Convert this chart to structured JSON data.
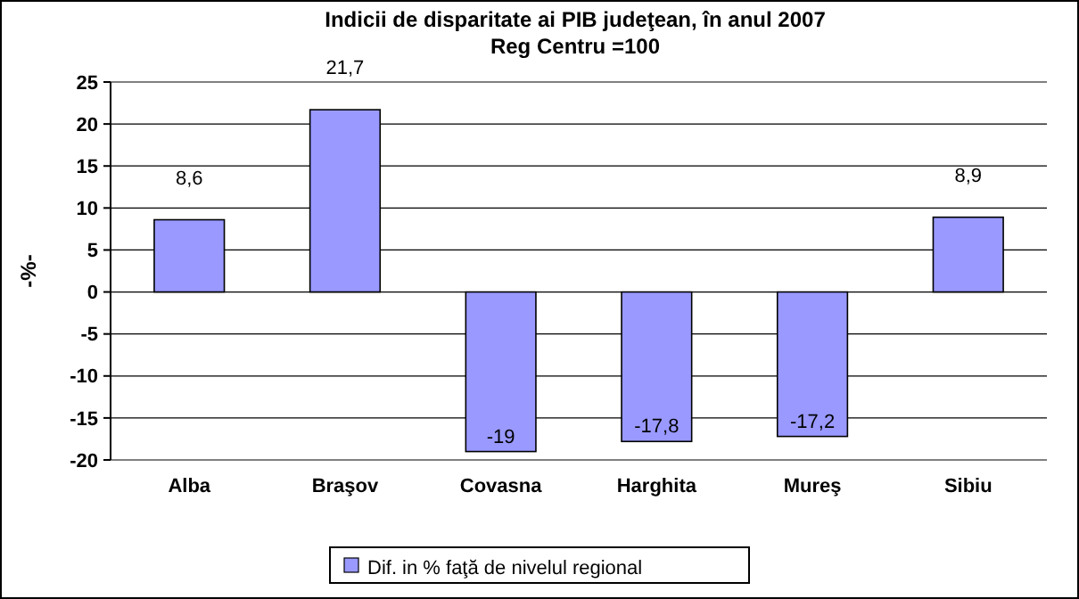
{
  "chart_data": {
    "type": "bar",
    "title": "Indicii de disparitate ai PIB judeţean, în anul 2007",
    "subtitle": "Reg Centru =100",
    "ylabel": "-%-",
    "categories": [
      "Alba",
      "Braşov",
      "Covasna",
      "Harghita",
      "Mureş",
      "Sibiu"
    ],
    "series": [
      {
        "name": "Dif. in % faţă de nivelul regional",
        "color": "#9999ff",
        "values": [
          8.6,
          21.7,
          -19,
          -17.8,
          -17.2,
          8.9
        ],
        "value_labels": [
          "8,6",
          "21,7",
          "-19",
          "-17,8",
          "-17,2",
          "8,9"
        ]
      }
    ],
    "ylim": [
      -20,
      25
    ],
    "yticks": [
      -20,
      -15,
      -10,
      -5,
      0,
      5,
      10,
      15,
      20,
      25
    ],
    "grid": "y",
    "legend": "bottom"
  }
}
